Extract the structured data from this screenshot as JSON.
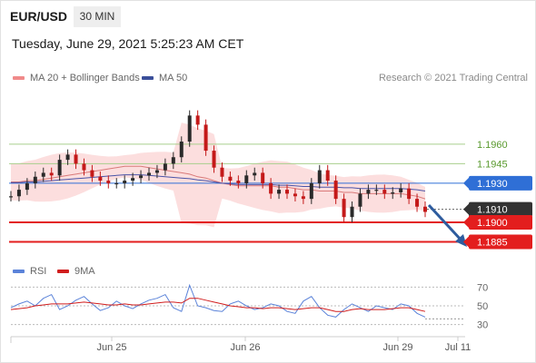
{
  "header": {
    "pair": "EUR/USD",
    "timeframe": "30 MIN",
    "datetime": "Tuesday, June 29, 2021 5:25:23 AM CET"
  },
  "legend": {
    "ma_bollinger": "MA 20 + Bollinger Bands",
    "ma50": "MA 50",
    "credit": "Research © 2021 Trading Central"
  },
  "rsi_legend": {
    "rsi": "RSI",
    "ma": "9MA"
  },
  "colors": {
    "up": "#2a2a2a",
    "down": "#c41919",
    "bollinger": "#fbd8d8",
    "ma20": "#d97a7a",
    "ma50": "#4a54a8",
    "green_level": "#a8cf8c",
    "blue_level": "#2f6fd6",
    "red_level": "#e31e1e",
    "arrow": "#2e5c9e",
    "rsi": "#5b83d9",
    "rsi_ma": "#d11d1d"
  },
  "chart_data": {
    "type": "candlestick",
    "price_ylim": [
      1.187,
      1.2
    ],
    "x_axis_labels": [
      "Jun 25",
      "Jun 26",
      "Jun 29",
      "Jul 11"
    ],
    "horizontal_levels": [
      {
        "value": 1.196,
        "label": "1.1960",
        "style": "green"
      },
      {
        "value": 1.1945,
        "label": "1.1945",
        "style": "green"
      },
      {
        "value": 1.193,
        "label": "1.1930",
        "style": "blue"
      },
      {
        "value": 1.191,
        "label": "1.1910",
        "style": "dark"
      },
      {
        "value": 1.19,
        "label": "1.1900",
        "style": "red"
      },
      {
        "value": 1.1885,
        "label": "1.1885",
        "style": "red"
      }
    ],
    "candles": [
      1.192,
      1.1925,
      1.193,
      1.1935,
      1.1938,
      1.1936,
      1.1948,
      1.1952,
      1.1945,
      1.194,
      1.1935,
      1.1932,
      1.193,
      1.193,
      1.1932,
      1.1934,
      1.1936,
      1.1938,
      1.194,
      1.1945,
      1.195,
      1.1962,
      1.1982,
      1.1975,
      1.1955,
      1.1942,
      1.1935,
      1.1932,
      1.193,
      1.1936,
      1.1938,
      1.193,
      1.1922,
      1.1925,
      1.1922,
      1.192,
      1.1918,
      1.193,
      1.194,
      1.1932,
      1.1918,
      1.1904,
      1.1912,
      1.1922,
      1.1925,
      1.1925,
      1.1922,
      1.1923,
      1.1926,
      1.1918,
      1.1912,
      1.1908
    ],
    "ma20": [
      1.1931,
      1.1931,
      1.1932,
      1.1932,
      1.1933,
      1.1934,
      1.1935,
      1.1936,
      1.1937,
      1.1938,
      1.1939,
      1.194,
      1.1941,
      1.1942,
      1.1943,
      1.1943,
      1.1943,
      1.1942,
      1.1941,
      1.194,
      1.1939,
      1.1938,
      1.1937,
      1.1935,
      1.1934,
      1.1932,
      1.193,
      1.1929,
      1.1928,
      1.1928,
      1.1928,
      1.1928,
      1.1928,
      1.1927,
      1.1927,
      1.1926,
      1.1925,
      1.1925,
      1.1924,
      1.1924,
      1.1924,
      1.1923,
      1.1923,
      1.1922,
      1.1922,
      1.1922,
      1.1922,
      1.1922,
      1.1922,
      1.1921,
      1.192,
      1.1918
    ],
    "ma50": 1.193,
    "rsi_ylim": [
      20,
      80
    ],
    "rsi_ticks": [
      70,
      50,
      30
    ],
    "rsi": [
      48,
      52,
      55,
      50,
      58,
      62,
      46,
      50,
      56,
      60,
      52,
      45,
      48,
      55,
      50,
      47,
      52,
      56,
      58,
      62,
      48,
      44,
      72,
      50,
      48,
      45,
      44,
      52,
      55,
      50,
      46,
      48,
      52,
      50,
      44,
      42,
      55,
      60,
      48,
      40,
      38,
      46,
      52,
      48,
      44,
      50,
      48,
      46,
      52,
      50,
      42,
      38
    ],
    "rsi_ma": [
      46,
      47,
      48,
      50,
      51,
      52,
      52,
      52,
      53,
      54,
      53,
      52,
      51,
      51,
      52,
      51,
      51,
      52,
      53,
      54,
      54,
      53,
      58,
      58,
      56,
      54,
      52,
      50,
      49,
      48,
      48,
      47,
      48,
      48,
      47,
      46,
      47,
      48,
      48,
      46,
      44,
      44,
      46,
      47,
      46,
      46,
      46,
      47,
      48,
      48,
      46,
      44
    ]
  }
}
